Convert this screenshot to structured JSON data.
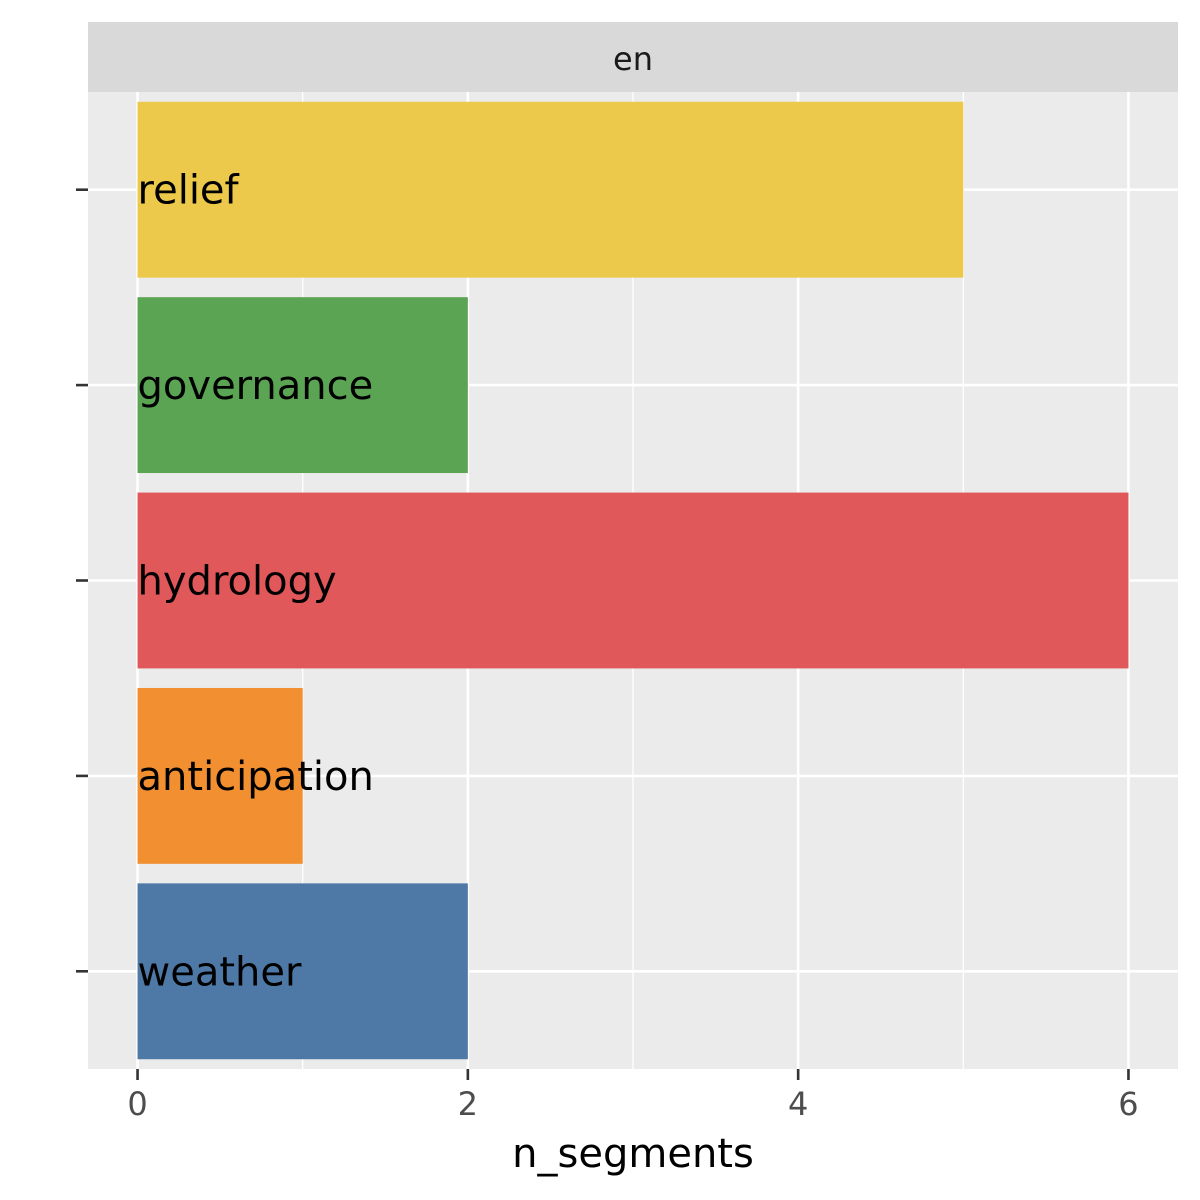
{
  "chart_data": {
    "type": "bar",
    "orientation": "horizontal",
    "facet_label": "en",
    "categories": [
      "relief",
      "governance",
      "hydrology",
      "anticipation",
      "weather"
    ],
    "values": [
      5,
      2,
      6,
      1,
      2
    ],
    "colors": [
      "#ECC94B",
      "#5BA453",
      "#E1585B",
      "#F28F30",
      "#4E79A6"
    ],
    "xlabel": "n_segments",
    "ylabel": "",
    "xlim": [
      -0.3,
      6.3
    ],
    "x_ticks": [
      0,
      2,
      4,
      6
    ],
    "x_tick_labels": [
      "0",
      "2",
      "4",
      "6"
    ],
    "grid": true,
    "panel_background": "#EBEBEB",
    "strip_background": "#D9D9D9",
    "gridline_color": "#FFFFFF"
  }
}
